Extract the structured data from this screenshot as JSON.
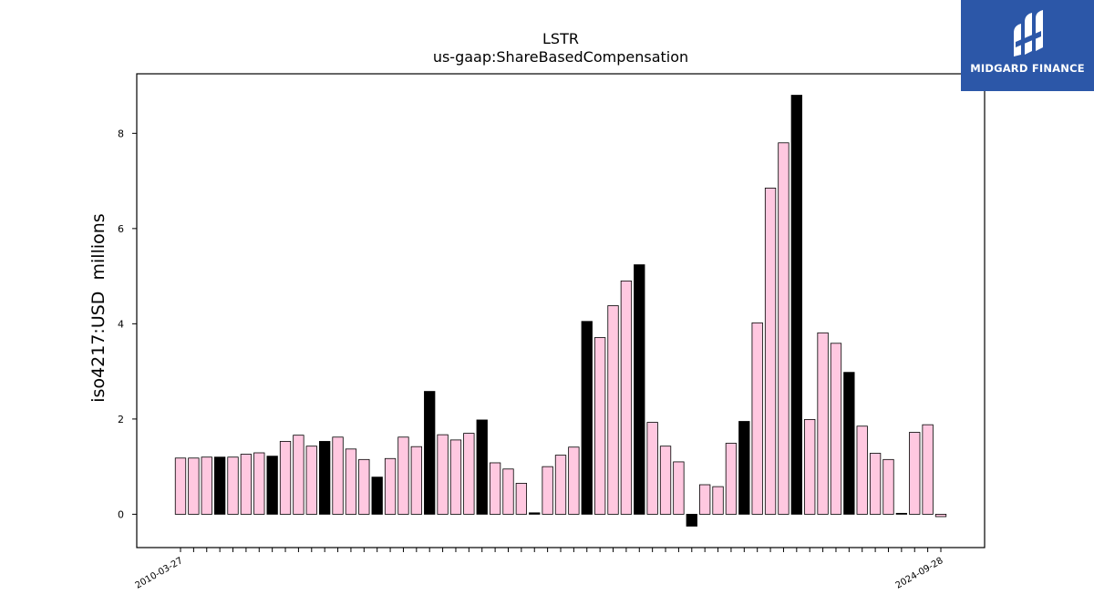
{
  "chart_data": {
    "type": "bar",
    "title": "LSTR",
    "subtitle": "us-gaap:ShareBasedCompensation",
    "xlabel": "",
    "ylabel": "iso4217:USD  millions",
    "ylim": [
      -0.7,
      9.25
    ],
    "yticks": [
      0,
      2,
      4,
      6,
      8
    ],
    "grid": false,
    "legend": "none",
    "colors": {
      "quarter": "#ffc8e0",
      "annual": "#000000",
      "edge": "#000000"
    },
    "categories": [
      "2010-03-27",
      "",
      "",
      "",
      "",
      "",
      "",
      "",
      "",
      "",
      "",
      "",
      "",
      "",
      "",
      "",
      "",
      "",
      "",
      "",
      "",
      "",
      "",
      "",
      "",
      "",
      "",
      "",
      "",
      "",
      "",
      "",
      "",
      "",
      "",
      "",
      "",
      "",
      "",
      "",
      "",
      "",
      "",
      "",
      "",
      "",
      "",
      "",
      "",
      "",
      "",
      "",
      "",
      "",
      "",
      "",
      "",
      "",
      "2024-09-28"
    ],
    "values": [
      1.18,
      1.18,
      1.2,
      1.2,
      1.2,
      1.26,
      1.29,
      1.22,
      1.53,
      1.66,
      1.43,
      1.53,
      1.62,
      1.37,
      1.15,
      0.78,
      1.17,
      1.62,
      1.42,
      2.58,
      1.67,
      1.56,
      1.7,
      1.98,
      1.08,
      0.95,
      0.65,
      0.03,
      1.0,
      1.24,
      1.41,
      4.05,
      3.71,
      4.38,
      4.9,
      5.24,
      1.93,
      1.43,
      1.1,
      -0.25,
      0.62,
      0.58,
      1.49,
      1.95,
      4.02,
      6.85,
      7.8,
      8.8,
      1.99,
      3.81,
      3.59,
      2.98,
      1.85,
      1.28,
      1.15,
      0.02,
      1.72,
      1.88,
      -0.05
    ],
    "annual_flags": [
      0,
      0,
      0,
      1,
      0,
      0,
      0,
      1,
      0,
      0,
      0,
      1,
      0,
      0,
      0,
      1,
      0,
      0,
      0,
      1,
      0,
      0,
      0,
      1,
      0,
      0,
      0,
      1,
      0,
      0,
      0,
      1,
      0,
      0,
      0,
      1,
      0,
      0,
      0,
      1,
      0,
      0,
      0,
      1,
      0,
      0,
      0,
      1,
      0,
      0,
      0,
      1,
      0,
      0,
      0,
      1,
      0,
      0,
      0
    ]
  },
  "logo": {
    "name": "MIDGARD FINANCE",
    "icon": "midgard-logo-icon"
  }
}
